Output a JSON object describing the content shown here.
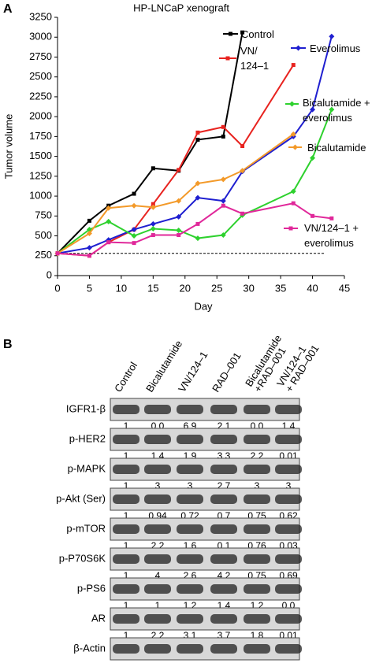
{
  "panel_labels": [
    "A",
    "B"
  ],
  "chart_data": {
    "type": "line",
    "title": "HP-LNCaP xenograft",
    "x_label": "Day",
    "y_label": "Tumor volume",
    "xlim": [
      0,
      45
    ],
    "xticks": [
      0,
      5,
      10,
      15,
      20,
      25,
      30,
      35,
      40,
      45
    ],
    "ylim": [
      0,
      3250
    ],
    "yticks": [
      0,
      250,
      500,
      750,
      1000,
      1250,
      1500,
      1750,
      2000,
      2250,
      2500,
      2750,
      3000,
      3250
    ],
    "reference_line": 280,
    "series": [
      {
        "name": "Control",
        "color": "#000000",
        "marker": "square",
        "x": [
          0,
          5,
          8,
          12,
          15,
          19,
          22,
          26,
          29
        ],
        "values": [
          280,
          690,
          880,
          1030,
          1350,
          1320,
          1710,
          1750,
          3060
        ]
      },
      {
        "name": "VN/\n124–1",
        "color": "#e8231f",
        "marker": "square",
        "x": [
          0,
          5,
          8,
          12,
          15,
          19,
          22,
          26,
          29,
          37
        ],
        "values": [
          280,
          250,
          420,
          580,
          900,
          1330,
          1800,
          1870,
          1630,
          2650
        ]
      },
      {
        "name": "Everolimus",
        "color": "#1f1fd0",
        "marker": "diamond",
        "x": [
          0,
          5,
          8,
          12,
          15,
          19,
          22,
          26,
          29,
          37,
          40,
          43
        ],
        "values": [
          280,
          350,
          450,
          580,
          650,
          740,
          980,
          940,
          1310,
          1750,
          2090,
          3010
        ]
      },
      {
        "name": "Bicalutamide +\neverolimus",
        "color": "#2ed12e",
        "marker": "diamond",
        "x": [
          0,
          5,
          8,
          12,
          15,
          19,
          22,
          26,
          29,
          37,
          40,
          43
        ],
        "values": [
          280,
          580,
          680,
          500,
          590,
          570,
          470,
          510,
          760,
          1060,
          1480,
          2090
        ]
      },
      {
        "name": "Bicalutamide",
        "color": "#f39a2a",
        "marker": "diamond",
        "x": [
          0,
          5,
          8,
          12,
          15,
          19,
          22,
          26,
          29,
          37
        ],
        "values": [
          280,
          530,
          850,
          880,
          860,
          940,
          1160,
          1210,
          1320,
          1780
        ]
      },
      {
        "name": "VN/124–1 +\neverolimus",
        "color": "#e0289a",
        "marker": "square",
        "x": [
          0,
          5,
          8,
          12,
          15,
          19,
          22,
          26,
          29,
          37,
          40,
          43
        ],
        "values": [
          280,
          250,
          420,
          410,
          510,
          510,
          650,
          880,
          780,
          910,
          750,
          720
        ]
      }
    ]
  },
  "blot": {
    "lanes": [
      "Control",
      "Bicalutamide",
      "VN/124–1",
      "RAD–001",
      "Bicalutamide\n+RAD–001",
      "VN/124–1\n+ RAD–001"
    ],
    "rows": [
      {
        "label": "IGFR1-β",
        "values": [
          "1",
          "0.0",
          "6.9",
          "2.1",
          "0.0",
          "1.4"
        ]
      },
      {
        "label": "p-HER2",
        "values": [
          "1",
          "1.4",
          "1.9",
          "3.3",
          "2.2",
          "0.01"
        ]
      },
      {
        "label": "p-MAPK",
        "values": [
          "1",
          "3",
          "3",
          "2.7",
          "3",
          "3"
        ]
      },
      {
        "label": "p-Akt (Ser)",
        "values": [
          "1",
          "0.94",
          "0.72",
          "0.7",
          "0.75",
          "0.62"
        ]
      },
      {
        "label": "p-mTOR",
        "values": [
          "1",
          "2.2",
          "1.6",
          "0.1",
          "0.76",
          "0.03"
        ]
      },
      {
        "label": "p-P70S6K",
        "values": [
          "1",
          "4",
          "2.6",
          "4.2",
          "0.75",
          "0.69"
        ]
      },
      {
        "label": "p-PS6",
        "values": [
          "1",
          "1",
          "1.2",
          "1.4",
          "1.2",
          "0.0"
        ]
      },
      {
        "label": "AR",
        "values": [
          "1",
          "2.2",
          "3.1",
          "3.7",
          "1.8",
          "0.01"
        ]
      },
      {
        "label": "β-Actin"
      }
    ]
  }
}
